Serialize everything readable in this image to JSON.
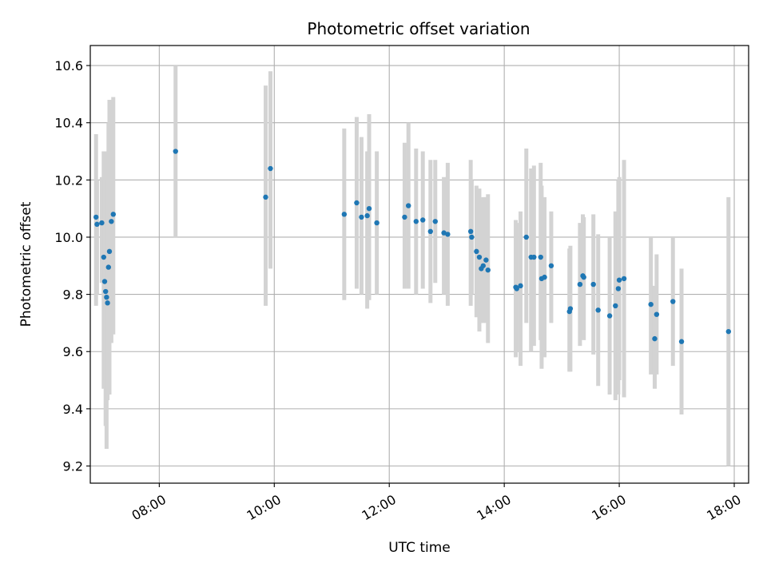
{
  "chart_data": {
    "type": "scatter",
    "title": "Photometric offset variation",
    "xlabel": "UTC time",
    "ylabel": "Photometric offset",
    "x_ticks": [
      "08:00",
      "10:00",
      "12:00",
      "14:00",
      "16:00",
      "18:00"
    ],
    "y_ticks": [
      "9.2",
      "9.4",
      "9.6",
      "9.8",
      "10.0",
      "10.2",
      "10.4",
      "10.6"
    ],
    "xlim": [
      "06:48",
      "18:15"
    ],
    "ylim": [
      9.14,
      10.67
    ],
    "grid": true,
    "colors": {
      "marker": "#1f77b4",
      "errorbar": "#d3d3d3"
    },
    "points": [
      {
        "x": "06:54",
        "y": 10.07,
        "ylo": 9.76,
        "yhi": 10.36
      },
      {
        "x": "06:55",
        "y": 10.045,
        "ylo": 9.8,
        "yhi": 10.2
      },
      {
        "x": "07:00",
        "y": 10.05,
        "ylo": 9.84,
        "yhi": 10.21
      },
      {
        "x": "07:02",
        "y": 9.93,
        "ylo": 9.47,
        "yhi": 10.3
      },
      {
        "x": "07:03",
        "y": 9.845,
        "ylo": 9.5,
        "yhi": 10.2
      },
      {
        "x": "07:04",
        "y": 9.81,
        "ylo": 9.34,
        "yhi": 10.29
      },
      {
        "x": "07:05",
        "y": 9.79,
        "ylo": 9.26,
        "yhi": 10.3
      },
      {
        "x": "07:06",
        "y": 9.77,
        "ylo": 9.43,
        "yhi": 10.2
      },
      {
        "x": "07:07",
        "y": 9.895,
        "ylo": 9.56,
        "yhi": 10.4
      },
      {
        "x": "07:08",
        "y": 9.95,
        "ylo": 9.45,
        "yhi": 10.48
      },
      {
        "x": "07:10",
        "y": 10.055,
        "ylo": 9.63,
        "yhi": 10.48
      },
      {
        "x": "07:12",
        "y": 10.08,
        "ylo": 9.66,
        "yhi": 10.49
      },
      {
        "x": "08:17",
        "y": 10.3,
        "ylo": 10.0,
        "yhi": 10.6
      },
      {
        "x": "09:51",
        "y": 10.14,
        "ylo": 9.76,
        "yhi": 10.53
      },
      {
        "x": "09:56",
        "y": 10.24,
        "ylo": 9.89,
        "yhi": 10.58
      },
      {
        "x": "11:13",
        "y": 10.08,
        "ylo": 9.78,
        "yhi": 10.38
      },
      {
        "x": "11:26",
        "y": 10.12,
        "ylo": 9.82,
        "yhi": 10.42
      },
      {
        "x": "11:31",
        "y": 10.07,
        "ylo": 9.8,
        "yhi": 10.35
      },
      {
        "x": "11:37",
        "y": 10.075,
        "ylo": 9.75,
        "yhi": 10.3
      },
      {
        "x": "11:39",
        "y": 10.1,
        "ylo": 9.78,
        "yhi": 10.43
      },
      {
        "x": "11:47",
        "y": 10.05,
        "ylo": 9.8,
        "yhi": 10.3
      },
      {
        "x": "12:16",
        "y": 10.07,
        "ylo": 9.82,
        "yhi": 10.33
      },
      {
        "x": "12:20",
        "y": 10.11,
        "ylo": 9.82,
        "yhi": 10.4
      },
      {
        "x": "12:28",
        "y": 10.055,
        "ylo": 9.8,
        "yhi": 10.31
      },
      {
        "x": "12:35",
        "y": 10.06,
        "ylo": 9.82,
        "yhi": 10.3
      },
      {
        "x": "12:43",
        "y": 10.02,
        "ylo": 9.77,
        "yhi": 10.27
      },
      {
        "x": "12:48",
        "y": 10.055,
        "ylo": 9.84,
        "yhi": 10.27
      },
      {
        "x": "12:57",
        "y": 10.015,
        "ylo": 9.8,
        "yhi": 10.21
      },
      {
        "x": "13:01",
        "y": 10.01,
        "ylo": 9.76,
        "yhi": 10.26
      },
      {
        "x": "13:25",
        "y": 10.02,
        "ylo": 9.76,
        "yhi": 10.27
      },
      {
        "x": "13:26",
        "y": 10.0,
        "ylo": 9.8,
        "yhi": 10.2
      },
      {
        "x": "13:31",
        "y": 9.95,
        "ylo": 9.72,
        "yhi": 10.18
      },
      {
        "x": "13:34",
        "y": 9.93,
        "ylo": 9.67,
        "yhi": 10.17
      },
      {
        "x": "13:36",
        "y": 9.89,
        "ylo": 9.7,
        "yhi": 10.13
      },
      {
        "x": "13:38",
        "y": 9.9,
        "ylo": 9.7,
        "yhi": 10.14
      },
      {
        "x": "13:41",
        "y": 9.92,
        "ylo": 9.7,
        "yhi": 10.14
      },
      {
        "x": "13:43",
        "y": 9.885,
        "ylo": 9.63,
        "yhi": 10.15
      },
      {
        "x": "14:12",
        "y": 9.825,
        "ylo": 9.58,
        "yhi": 10.06
      },
      {
        "x": "14:13",
        "y": 9.82,
        "ylo": 9.6,
        "yhi": 10.05
      },
      {
        "x": "14:17",
        "y": 9.83,
        "ylo": 9.55,
        "yhi": 10.09
      },
      {
        "x": "14:23",
        "y": 10.0,
        "ylo": 9.7,
        "yhi": 10.31
      },
      {
        "x": "14:28",
        "y": 9.93,
        "ylo": 9.6,
        "yhi": 10.24
      },
      {
        "x": "14:31",
        "y": 9.93,
        "ylo": 9.62,
        "yhi": 10.25
      },
      {
        "x": "14:38",
        "y": 9.93,
        "ylo": 9.64,
        "yhi": 10.26
      },
      {
        "x": "14:39",
        "y": 9.855,
        "ylo": 9.54,
        "yhi": 10.18
      },
      {
        "x": "14:42",
        "y": 9.86,
        "ylo": 9.58,
        "yhi": 10.14
      },
      {
        "x": "14:49",
        "y": 9.9,
        "ylo": 9.7,
        "yhi": 10.09
      },
      {
        "x": "15:08",
        "y": 9.74,
        "ylo": 9.53,
        "yhi": 9.96
      },
      {
        "x": "15:09",
        "y": 9.75,
        "ylo": 9.53,
        "yhi": 9.97
      },
      {
        "x": "15:19",
        "y": 9.835,
        "ylo": 9.62,
        "yhi": 10.05
      },
      {
        "x": "15:22",
        "y": 9.865,
        "ylo": 9.65,
        "yhi": 10.08
      },
      {
        "x": "15:23",
        "y": 9.86,
        "ylo": 9.64,
        "yhi": 10.07
      },
      {
        "x": "15:33",
        "y": 9.835,
        "ylo": 9.59,
        "yhi": 10.08
      },
      {
        "x": "15:38",
        "y": 9.745,
        "ylo": 9.48,
        "yhi": 10.01
      },
      {
        "x": "15:50",
        "y": 9.725,
        "ylo": 9.45,
        "yhi": 10.0
      },
      {
        "x": "15:56",
        "y": 9.76,
        "ylo": 9.43,
        "yhi": 10.09
      },
      {
        "x": "15:59",
        "y": 9.82,
        "ylo": 9.45,
        "yhi": 10.2
      },
      {
        "x": "16:00",
        "y": 9.85,
        "ylo": 9.5,
        "yhi": 10.21
      },
      {
        "x": "16:05",
        "y": 9.855,
        "ylo": 9.44,
        "yhi": 10.27
      },
      {
        "x": "16:33",
        "y": 9.765,
        "ylo": 9.52,
        "yhi": 10.0
      },
      {
        "x": "16:37",
        "y": 9.645,
        "ylo": 9.47,
        "yhi": 9.83
      },
      {
        "x": "16:39",
        "y": 9.73,
        "ylo": 9.52,
        "yhi": 9.94
      },
      {
        "x": "16:56",
        "y": 9.775,
        "ylo": 9.55,
        "yhi": 10.0
      },
      {
        "x": "17:05",
        "y": 9.635,
        "ylo": 9.38,
        "yhi": 9.89
      },
      {
        "x": "17:54",
        "y": 9.67,
        "ylo": 9.2,
        "yhi": 10.14
      }
    ]
  }
}
